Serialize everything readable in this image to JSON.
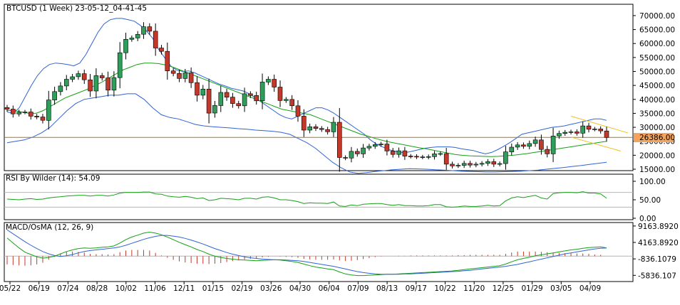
{
  "chart_data": [
    {
      "type": "candlestick",
      "title": "BTCUSD (1 Week) 23-05-12_04-41-45",
      "ylim": [
        15000,
        71000
      ],
      "price_ticks": [
        "70000.00",
        "65000.00",
        "60000.00",
        "55000.00",
        "50000.00",
        "45000.00",
        "40000.00",
        "35000.00",
        "30000.00",
        "25000.00",
        "20000.00",
        "15000.00"
      ],
      "current_price_label": "26386.00",
      "current_price": 26386,
      "colors": {
        "up": "#2e9e5a",
        "down": "#c0392b",
        "bb": "#2f64d6",
        "mid": "#14a014",
        "price_line": "#a07828",
        "channel": "#f0c020",
        "price_tag": "#f3a35b"
      },
      "closes": [
        36500,
        34800,
        35400,
        35500,
        34000,
        33700,
        32500,
        39800,
        42800,
        44800,
        47200,
        48100,
        49200,
        47000,
        43000,
        48500,
        47700,
        43300,
        47800,
        56700,
        61500,
        62000,
        63300,
        66000,
        64400,
        58400,
        57200,
        50200,
        49300,
        47500,
        49500,
        46000,
        41500,
        43700,
        35100,
        37800,
        42500,
        40800,
        38500,
        37700,
        42000,
        41400,
        39500,
        46200,
        47200,
        44400,
        39600,
        40000,
        37700,
        34000,
        29000,
        30200,
        29600,
        29200,
        28400,
        31800,
        19200,
        19000,
        21400,
        20500,
        22600,
        23200,
        23800,
        24000,
        21500,
        20300,
        21600,
        19700,
        19600,
        19400,
        19300,
        19500,
        20500,
        20600,
        16800,
        16200,
        16400,
        17100,
        16500,
        16800,
        17100,
        17700,
        16800,
        17000,
        21200,
        22900,
        23700,
        23200,
        24200,
        25500,
        22100,
        20500,
        26900,
        27800,
        28200,
        28400,
        27900,
        30500,
        29300,
        29400,
        28700,
        26386
      ],
      "bb_upper": [
        35500,
        35000,
        37000,
        41000,
        45000,
        48500,
        51000,
        52500,
        53000,
        52800,
        52500,
        52000,
        53000,
        56000,
        60000,
        64000,
        67000,
        68500,
        69000,
        69000,
        68500,
        68000,
        66500,
        64500,
        62000,
        58000,
        55000,
        52000,
        50500,
        50000,
        50200,
        49500,
        48500,
        47500,
        46500,
        45500,
        44800,
        44000,
        43500,
        43000,
        42000,
        40500,
        39000,
        37500,
        36000,
        34500,
        33500,
        33000,
        34000,
        35000,
        36000,
        37000,
        37000,
        36200,
        35000,
        33500,
        32000,
        30500,
        29000,
        27500,
        25500,
        24000,
        23000,
        22000,
        21500,
        21000,
        21000,
        21500,
        22000,
        22500,
        22800,
        23000,
        23000,
        23000,
        22800,
        22300,
        22000,
        21700,
        21000,
        20500,
        21000,
        22000,
        23200,
        24500,
        26000,
        27500,
        28000,
        28500,
        29000,
        29500,
        30000,
        30200,
        30500,
        31000,
        31500,
        32000,
        32500,
        33000,
        33000,
        32500
      ],
      "bb_middle": [
        36000,
        36000,
        35500,
        35000,
        35000,
        36000,
        37500,
        39000,
        40500,
        41500,
        42500,
        43500,
        44800,
        46000,
        47500,
        49000,
        50500,
        51500,
        52500,
        53000,
        53000,
        52800,
        52300,
        51500,
        50500,
        49500,
        48500,
        47500,
        46500,
        45500,
        44500,
        43500,
        42500,
        41500,
        40500,
        39500,
        38500,
        37500,
        36500,
        36000,
        35500,
        35000,
        34500,
        33500,
        32500,
        31500,
        30500,
        29500,
        28500,
        27500,
        26800,
        26000,
        25300,
        24700,
        24200,
        23700,
        23200,
        22700,
        22300,
        21800,
        21300,
        20800,
        20300,
        20000,
        19800,
        19700,
        19600,
        19500,
        19600,
        19800,
        20000,
        20300,
        20600,
        21000,
        21400,
        21800,
        22200,
        22600,
        23000,
        23400,
        23800,
        24200,
        24600,
        25000
      ],
      "bb_lower": [
        24500,
        25000,
        25500,
        26500,
        28000,
        30000,
        33000,
        36000,
        38500,
        40000,
        40500,
        41000,
        41500,
        41500,
        42000,
        42000,
        40000,
        37000,
        34500,
        33500,
        33000,
        32000,
        31000,
        30500,
        30200,
        30000,
        29800,
        29500,
        29300,
        29000,
        28800,
        28600,
        28200,
        27500,
        26000,
        24500,
        22500,
        20000,
        17500,
        15500,
        14000,
        13500,
        13800,
        14200,
        14500,
        14800,
        15000,
        15200,
        15100,
        15000,
        14800,
        14700,
        14500,
        14300,
        14200,
        14100,
        14000,
        14000,
        14100,
        14200,
        14300,
        14500,
        14700,
        15000,
        15300,
        15600,
        16000,
        16300,
        16700,
        17100,
        17500
      ],
      "price_line": 26386,
      "channel_upper": [
        30000,
        34000
      ],
      "channel_lower": [
        21500,
        26500
      ]
    },
    {
      "type": "line",
      "title": "RSI By Wilder (14): 54.09",
      "ylim": [
        0,
        100
      ],
      "ticks": [
        "100.00",
        "50.00",
        "0.00"
      ],
      "levels": [
        30,
        70
      ],
      "values": [
        52,
        51,
        50,
        52,
        53,
        51,
        52,
        55,
        57,
        58,
        60,
        61,
        62,
        62,
        60,
        62,
        62,
        60,
        63,
        68,
        70,
        70,
        70,
        71,
        71,
        66,
        65,
        60,
        58,
        57,
        59,
        57,
        53,
        55,
        48,
        50,
        54,
        53,
        52,
        50,
        54,
        54,
        52,
        57,
        58,
        55,
        50,
        50,
        48,
        45,
        40,
        42,
        41,
        41,
        40,
        44,
        33,
        32,
        36,
        34,
        38,
        39,
        40,
        40,
        37,
        35,
        37,
        34,
        34,
        33,
        33,
        34,
        37,
        37,
        31,
        30,
        31,
        33,
        32,
        32,
        33,
        35,
        33,
        34,
        47,
        55,
        58,
        56,
        59,
        62,
        55,
        52,
        67,
        69,
        70,
        70,
        69,
        72,
        68,
        68,
        66,
        54
      ]
    },
    {
      "type": "line",
      "title": "MACD/OsMA (12, 26, 9)",
      "ylim": [
        -7500,
        10000
      ],
      "ticks": [
        "9163.8920",
        "4163.8920",
        "-836.1079",
        "-5836.107"
      ],
      "macd": [
        5500,
        4000,
        2500,
        1200,
        500,
        -200,
        -600,
        -400,
        0,
        700,
        1400,
        1900,
        2300,
        2500,
        2400,
        2500,
        2700,
        2800,
        3100,
        4000,
        5000,
        5800,
        6400,
        7000,
        7300,
        7000,
        6500,
        5800,
        5000,
        4200,
        3500,
        2800,
        2000,
        1400,
        600,
        0,
        -400,
        -700,
        -900,
        -1100,
        -1200,
        -1300,
        -1400,
        -1300,
        -1200,
        -1100,
        -1200,
        -1400,
        -1600,
        -1900,
        -2400,
        -2900,
        -3300,
        -3600,
        -3900,
        -4100,
        -4800,
        -5400,
        -5700,
        -5900,
        -5900,
        -5800,
        -5700,
        -5600,
        -5500,
        -5500,
        -5400,
        -5300,
        -5200,
        -5100,
        -5000,
        -4900,
        -4800,
        -4700,
        -4600,
        -4500,
        -4300,
        -4100,
        -3900,
        -3700,
        -3500,
        -3300,
        -3100,
        -2900,
        -2400,
        -1700,
        -1100,
        -700,
        -300,
        100,
        400,
        700,
        1000,
        1300,
        1600,
        1900,
        2100,
        2400,
        2600,
        2700,
        2800,
        2500
      ],
      "signal": [
        8000,
        6800,
        5600,
        4400,
        3300,
        2300,
        1400,
        700,
        200,
        -100,
        100,
        500,
        1000,
        1400,
        1700,
        1900,
        2100,
        2300,
        2500,
        2800,
        3300,
        3900,
        4500,
        5100,
        5600,
        6000,
        6300,
        6300,
        6100,
        5800,
        5400,
        4900,
        4300,
        3700,
        3000,
        2300,
        1700,
        1100,
        600,
        200,
        -200,
        -500,
        -700,
        -900,
        -1000,
        -1100,
        -1100,
        -1200,
        -1300,
        -1400,
        -1600,
        -1900,
        -2200,
        -2500,
        -2800,
        -3100,
        -3500,
        -3900,
        -4300,
        -4700,
        -5000,
        -5200,
        -5400,
        -5500,
        -5500,
        -5500,
        -5500,
        -5400,
        -5400,
        -5300,
        -5200,
        -5100,
        -5000,
        -4900,
        -4800,
        -4700,
        -4600,
        -4400,
        -4300,
        -4100,
        -3900,
        -3700,
        -3500,
        -3300,
        -3100,
        -2800,
        -2500,
        -2100,
        -1700,
        -1300,
        -900,
        -500,
        -100,
        300,
        700,
        1000,
        1300,
        1600,
        1900,
        2200,
        2400,
        2500
      ],
      "osma": [
        -2500,
        -2700,
        -2800,
        -2900,
        -2800,
        -2500,
        -2000,
        -1100,
        -200,
        800,
        1300,
        1400,
        1300,
        1100,
        700,
        600,
        600,
        500,
        600,
        1200,
        1700,
        1900,
        1900,
        1900,
        1700,
        1000,
        200,
        -500,
        -1100,
        -1600,
        -1900,
        -2100,
        -2300,
        -2300,
        -2400,
        -2300,
        -2100,
        -1800,
        -1500,
        -1300,
        -1000,
        -800,
        -700,
        -400,
        -200,
        0,
        -100,
        -200,
        -300,
        -500,
        -800,
        -1000,
        -1100,
        -1100,
        -1100,
        -1000,
        -1300,
        -1500,
        -1400,
        -1200,
        -900,
        -600,
        -300,
        -100,
        0,
        0,
        100,
        100,
        200,
        200,
        200,
        200,
        200,
        200,
        200,
        200,
        300,
        300,
        400,
        400,
        400,
        400,
        400,
        400,
        700,
        1100,
        1400,
        1400,
        1400,
        1400,
        1300,
        1200,
        1100,
        1000,
        900,
        900,
        800,
        800,
        700,
        500,
        400,
        0
      ]
    }
  ],
  "x_axis_labels": [
    "05/22",
    "06/19",
    "07/24",
    "08/28",
    "10/02",
    "11/06",
    "12/11",
    "01/15",
    "02/19",
    "03/26",
    "04/30",
    "06/04",
    "07/09",
    "08/13",
    "09/17",
    "10/22",
    "11/20",
    "12/25",
    "01/29",
    "03/05",
    "04/09"
  ]
}
